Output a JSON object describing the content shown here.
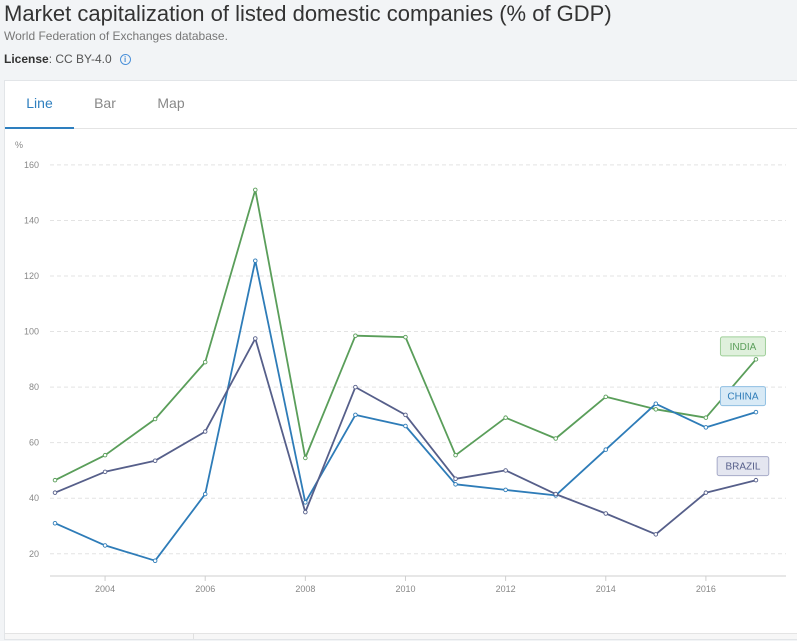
{
  "header": {
    "title": "Market capitalization of listed domestic companies (% of GDP)",
    "source": "World Federation of Exchanges database.",
    "license_label": "License",
    "license_value": " : CC BY-4.0 "
  },
  "tabs": [
    {
      "label": "Line",
      "active": true
    },
    {
      "label": "Bar",
      "active": false
    },
    {
      "label": "Map",
      "active": false
    }
  ],
  "chart_data": {
    "type": "line",
    "ylabel": "%",
    "xlabel": "",
    "ylim": [
      12,
      165
    ],
    "xlim": [
      2002.9,
      2017.6
    ],
    "y_ticks": [
      20,
      40,
      60,
      80,
      100,
      120,
      140,
      160
    ],
    "x_ticks": [
      2004,
      2006,
      2008,
      2010,
      2012,
      2014,
      2016
    ],
    "grid": "horizontal dashed",
    "x": [
      2003,
      2004,
      2005,
      2006,
      2007,
      2008,
      2009,
      2010,
      2011,
      2012,
      2013,
      2014,
      2015,
      2016,
      2017
    ],
    "series": [
      {
        "name": "INDIA",
        "color": "#5a9e5a",
        "label_bg": "#dff0dc",
        "label_border": "#9fcf99",
        "values": [
          46.5,
          55.5,
          68.5,
          89,
          151,
          54.5,
          98.5,
          98,
          55.5,
          69,
          61.5,
          76.5,
          72,
          69,
          90
        ]
      },
      {
        "name": "CHINA",
        "color": "#2e7cb8",
        "label_bg": "#d8eaf6",
        "label_border": "#8fbfe2",
        "values": [
          31,
          23,
          17.5,
          41.5,
          125.5,
          38.5,
          70,
          66,
          45,
          43,
          41,
          57.5,
          74,
          65.5,
          71
        ]
      },
      {
        "name": "BRAZIL",
        "color": "#565f8a",
        "label_bg": "#e4e6f0",
        "label_border": "#a6aac8",
        "values": [
          42,
          49.5,
          53.5,
          64,
          97.5,
          35,
          80,
          70,
          47,
          50,
          41.5,
          34.5,
          27,
          42,
          46.5
        ]
      }
    ]
  }
}
